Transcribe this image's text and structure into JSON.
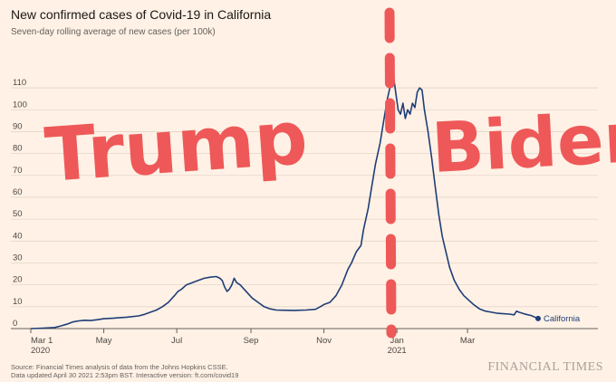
{
  "header": {
    "title": "New confirmed cases of Covid-19 in California",
    "subtitle": "Seven-day rolling average of new cases (per 100k)"
  },
  "footer": {
    "source_line1": "Source: Financial Times analysis of data from the Johns Hopkins CSSE.",
    "source_line2": "Data updated April 30 2021 2:53pm BST. Interactive version: ft.com/covid19",
    "brand": "FINANCIAL TIMES"
  },
  "annotations": {
    "left": "Trump",
    "right": "Biden",
    "color": "#ef5858"
  },
  "chart_data": {
    "type": "line",
    "title": "New confirmed cases of Covid-19 in California",
    "subtitle": "Seven-day rolling average of new cases (per 100k)",
    "ylim": [
      0,
      115
    ],
    "yticks": [
      0,
      10,
      20,
      30,
      40,
      50,
      60,
      70,
      80,
      90,
      100,
      110
    ],
    "xticks": [
      {
        "day": 0,
        "label": "Mar 1",
        "sublabel": "2020"
      },
      {
        "day": 61,
        "label": "May",
        "sublabel": ""
      },
      {
        "day": 122,
        "label": "Jul",
        "sublabel": ""
      },
      {
        "day": 184,
        "label": "Sep",
        "sublabel": ""
      },
      {
        "day": 245,
        "label": "Nov",
        "sublabel": ""
      },
      {
        "day": 306,
        "label": "Jan",
        "sublabel": "2021"
      },
      {
        "day": 365,
        "label": "Mar",
        "sublabel": ""
      }
    ],
    "xlim": [
      0,
      424
    ],
    "series": [
      {
        "name": "California",
        "color": "#1f3e78",
        "points": [
          [
            0,
            0
          ],
          [
            10,
            0.2
          ],
          [
            20,
            0.5
          ],
          [
            25,
            1.2
          ],
          [
            30,
            2
          ],
          [
            35,
            3
          ],
          [
            40,
            3.5
          ],
          [
            45,
            3.8
          ],
          [
            50,
            3.7
          ],
          [
            55,
            4
          ],
          [
            61,
            4.5
          ],
          [
            70,
            4.8
          ],
          [
            80,
            5.2
          ],
          [
            90,
            5.8
          ],
          [
            95,
            6.5
          ],
          [
            100,
            7.5
          ],
          [
            105,
            8.5
          ],
          [
            110,
            10
          ],
          [
            115,
            12
          ],
          [
            120,
            15
          ],
          [
            123,
            17
          ],
          [
            126,
            18
          ],
          [
            130,
            20
          ],
          [
            135,
            21
          ],
          [
            140,
            22
          ],
          [
            145,
            23
          ],
          [
            150,
            23.5
          ],
          [
            155,
            23.8
          ],
          [
            158,
            23
          ],
          [
            160,
            22
          ],
          [
            162,
            19
          ],
          [
            164,
            17
          ],
          [
            166,
            18
          ],
          [
            168,
            20
          ],
          [
            170,
            23
          ],
          [
            172,
            21
          ],
          [
            175,
            20
          ],
          [
            180,
            17
          ],
          [
            185,
            14
          ],
          [
            190,
            12
          ],
          [
            195,
            10
          ],
          [
            200,
            9
          ],
          [
            205,
            8.5
          ],
          [
            210,
            8.4
          ],
          [
            220,
            8.3
          ],
          [
            230,
            8.5
          ],
          [
            238,
            8.8
          ],
          [
            242,
            10
          ],
          [
            245,
            11
          ],
          [
            250,
            12
          ],
          [
            255,
            15
          ],
          [
            260,
            20
          ],
          [
            265,
            27
          ],
          [
            268,
            30
          ],
          [
            272,
            35
          ],
          [
            276,
            38
          ],
          [
            278,
            45
          ],
          [
            282,
            55
          ],
          [
            285,
            65
          ],
          [
            288,
            75
          ],
          [
            292,
            85
          ],
          [
            295,
            95
          ],
          [
            298,
            105
          ],
          [
            301,
            112
          ],
          [
            303,
            116
          ],
          [
            305,
            108
          ],
          [
            307,
            100
          ],
          [
            309,
            98
          ],
          [
            311,
            103
          ],
          [
            313,
            96
          ],
          [
            315,
            100
          ],
          [
            317,
            98
          ],
          [
            319,
            103
          ],
          [
            321,
            101
          ],
          [
            323,
            108
          ],
          [
            325,
            110
          ],
          [
            327,
            109
          ],
          [
            329,
            100
          ],
          [
            332,
            90
          ],
          [
            335,
            78
          ],
          [
            338,
            65
          ],
          [
            341,
            52
          ],
          [
            344,
            42
          ],
          [
            347,
            35
          ],
          [
            350,
            28
          ],
          [
            354,
            22
          ],
          [
            358,
            18
          ],
          [
            362,
            15
          ],
          [
            366,
            13
          ],
          [
            370,
            11
          ],
          [
            375,
            9
          ],
          [
            380,
            8
          ],
          [
            385,
            7.5
          ],
          [
            390,
            7
          ],
          [
            395,
            6.8
          ],
          [
            400,
            6.6
          ],
          [
            404,
            6.3
          ],
          [
            406,
            8
          ],
          [
            408,
            7.5
          ],
          [
            411,
            7
          ],
          [
            414,
            6.5
          ],
          [
            418,
            6
          ],
          [
            421,
            5.3
          ],
          [
            424,
            4.6
          ]
        ]
      }
    ]
  }
}
